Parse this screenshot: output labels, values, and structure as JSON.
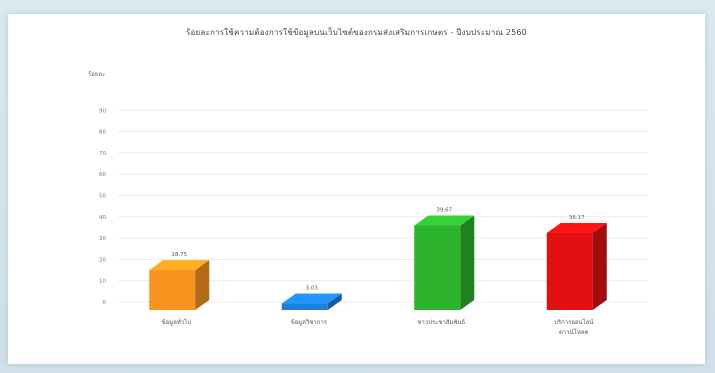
{
  "chart_data": {
    "type": "bar",
    "title": "ร้อยละการใช้ความต้องการใช้ข้อมูลบนเว็บไซต์ของกรมส่งเสริมการเกษตร - ปีงบประมาณ 2560",
    "ylabel": "ร้อยละ",
    "ylim": [
      0,
      100
    ],
    "yticks": [
      0,
      10,
      20,
      30,
      40,
      50,
      60,
      70,
      80,
      90
    ],
    "grid": true,
    "categories": [
      "ข้อมูลทั่วไป",
      "ข้อมูลวิชาการ",
      "ข่าวประชาสัมพันธ์",
      "บริการออนไลน์ / ดาวน์โหลด"
    ],
    "values": [
      18.75,
      3.03,
      39.67,
      36.17
    ],
    "value_labels": [
      "18.75",
      "3.03",
      "39.67",
      "36.17"
    ],
    "colors": [
      "#f7931e",
      "#1e7fd6",
      "#2db32d",
      "#e01010"
    ]
  }
}
